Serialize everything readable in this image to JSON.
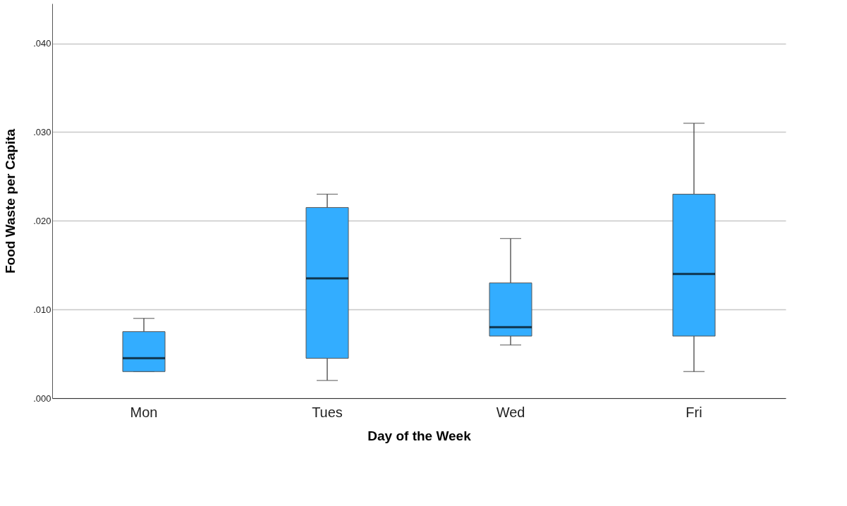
{
  "chart_data": {
    "type": "box",
    "xlabel": "Day of the Week",
    "ylabel": "Food Waste per Capita",
    "categories": [
      "Mon",
      "Tues",
      "Wed",
      "Fri"
    ],
    "series": [
      {
        "color": "#33adff",
        "boxes": [
          {
            "low": 0.003,
            "q1": 0.003,
            "median": 0.0045,
            "q3": 0.0075,
            "high": 0.009
          },
          {
            "low": 0.002,
            "q1": 0.0045,
            "median": 0.0135,
            "q3": 0.0215,
            "high": 0.023
          },
          {
            "low": 0.006,
            "q1": 0.007,
            "median": 0.008,
            "q3": 0.013,
            "high": 0.018
          },
          {
            "low": 0.003,
            "q1": 0.007,
            "median": 0.014,
            "q3": 0.023,
            "high": 0.031
          }
        ]
      }
    ],
    "ylim": [
      0,
      0.0445
    ],
    "yticks": [
      {
        "value": 0,
        "label": ".000"
      },
      {
        "value": 0.01,
        "label": ".010"
      },
      {
        "value": 0.02,
        "label": ".020"
      },
      {
        "value": 0.03,
        "label": ".030"
      },
      {
        "value": 0.04,
        "label": ".040"
      }
    ],
    "grid": "y"
  }
}
